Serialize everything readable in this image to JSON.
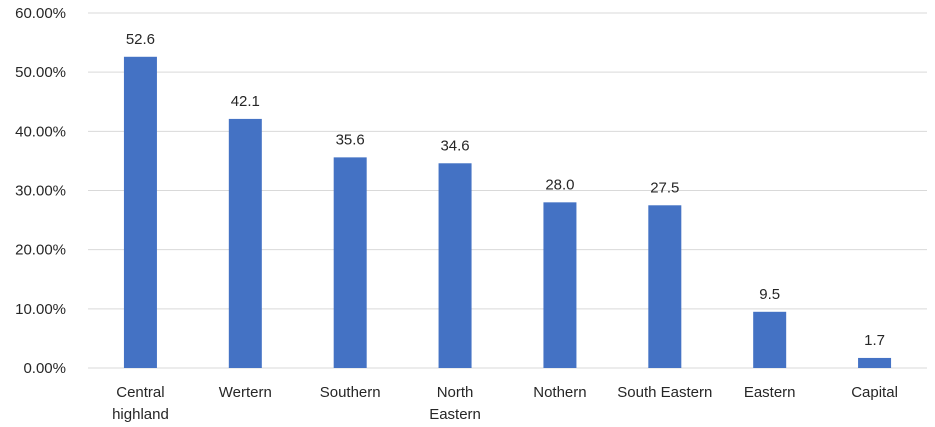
{
  "chart_data": {
    "type": "bar",
    "categories": [
      [
        "Central",
        "highland"
      ],
      [
        "Wertern"
      ],
      [
        "Southern"
      ],
      [
        "North",
        "Eastern"
      ],
      [
        "Nothern"
      ],
      [
        "South Eastern"
      ],
      [
        "Eastern"
      ],
      [
        "Capital"
      ]
    ],
    "values": [
      52.6,
      42.1,
      35.6,
      34.6,
      28.0,
      27.5,
      9.5,
      1.7
    ],
    "data_labels": [
      "52.6",
      "42.1",
      "35.6",
      "34.6",
      "28.0",
      "27.5",
      "9.5",
      "1.7"
    ],
    "y_ticks": [
      "0.00%",
      "10.00%",
      "20.00%",
      "30.00%",
      "40.00%",
      "50.00%",
      "60.00%"
    ],
    "ylim": [
      0,
      60
    ],
    "grid": true,
    "legend": "none",
    "colors": {
      "bar": "#4472c4",
      "grid": "#d9d9d9",
      "text": "#262626"
    }
  }
}
